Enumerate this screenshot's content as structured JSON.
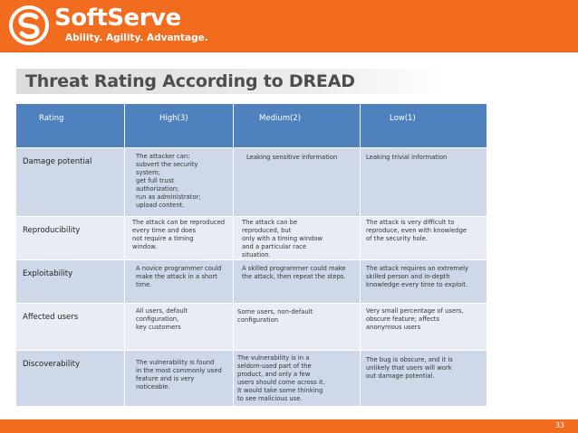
{
  "brand": {
    "name": "SoftServe",
    "tagline": "Ability. Agility. Advantage.",
    "accent_color": "#f26c1f",
    "table_header_color": "#4e81bd",
    "logo_icon": "softserve-swirl-icon"
  },
  "slide": {
    "title": "Threat Rating According to DREAD",
    "page_number": "33"
  },
  "table": {
    "headers": [
      "Rating",
      "High(3)",
      "Medium(2)",
      "Low(1)"
    ],
    "rows": [
      {
        "category": "Damage potential",
        "high": "The attacker can:\nsubvert the security\nsystem;\nget full trust\nauthorization;\nrun as administrator;\nupload content.",
        "medium": "Leaking sensitive information",
        "low": "Leaking trivial information"
      },
      {
        "category": "Reproducibility",
        "high": "The attack can be reproduced\nevery time and does\nnot require a timing\nwindow.",
        "medium": "The attack can be\nreproduced, but\nonly with a timing window\nand a particular race\nsituation.",
        "low": "The attack is very difficult to\nreproduce, even with knowledge\nof the security hole."
      },
      {
        "category": "Exploitability",
        "high": "A novice programmer could\nmake the attack in a short\ntime.",
        "medium": "A skilled programmer could make\nthe attack, then repeat the steps.",
        "low": "The attack requires an extremely\nskilled person and in-depth\nknowledge every time to exploit."
      },
      {
        "category": "Affected users",
        "high": "All users, default\nconfiguration,\nkey customers",
        "medium": "Some users, non-default\nconfiguration",
        "low": "Very small percentage of users,\nobscure feature; affects\nanonymous users"
      },
      {
        "category": "Discoverability",
        "high": "The vulnerability is found\nin the most commonly used\nfeature and is very\nnoticeable.",
        "medium": "The vulnerability is in a\nseldom-used part of the\nproduct, and only a few\nusers should come across it.\nIt would take some thinking\nto see malicious use.",
        "low": "The bug is obscure, and it is\nunlikely that users will work\nout damage potential."
      }
    ]
  }
}
